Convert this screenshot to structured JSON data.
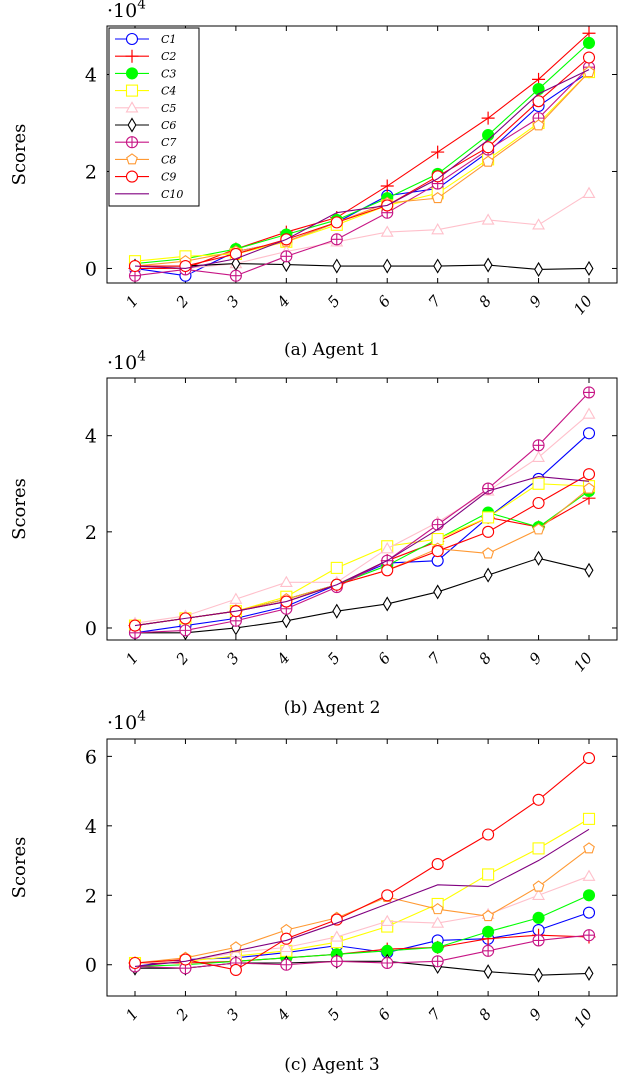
{
  "chart_data": [
    {
      "type": "line",
      "caption": "(a) Agent 1",
      "ylabel": "Scores",
      "multiplier": "·10^4",
      "x": [
        "1",
        "2",
        "3",
        "4",
        "5",
        "6",
        "7",
        "8",
        "9",
        "10"
      ],
      "ylim": [
        -0.3,
        5.0
      ],
      "yticks": [
        0,
        2,
        4
      ],
      "legend": "top-left",
      "series": [
        {
          "name": "C1",
          "color": "#0000ff",
          "marker": "circle-open",
          "values": [
            0.0,
            -0.15,
            0.35,
            0.55,
            0.95,
            1.5,
            1.65,
            2.4,
            3.35,
            4.05
          ]
        },
        {
          "name": "C2",
          "color": "#ff0000",
          "marker": "plus",
          "values": [
            0.0,
            0.0,
            0.4,
            0.75,
            1.05,
            1.7,
            2.4,
            3.1,
            3.9,
            4.85
          ]
        },
        {
          "name": "C3",
          "color": "#00ff00",
          "marker": "circle-filled",
          "values": [
            0.1,
            0.2,
            0.4,
            0.7,
            1.0,
            1.45,
            1.95,
            2.75,
            3.7,
            4.65
          ]
        },
        {
          "name": "C4",
          "color": "#ffff00",
          "marker": "square-open",
          "values": [
            0.15,
            0.25,
            0.3,
            0.55,
            0.9,
            1.3,
            1.55,
            2.25,
            3.0,
            4.05
          ]
        },
        {
          "name": "C5",
          "color": "#ffc0cb",
          "marker": "triangle-open",
          "values": [
            0.05,
            0.0,
            0.1,
            0.35,
            0.55,
            0.75,
            0.8,
            1.0,
            0.9,
            1.55
          ]
        },
        {
          "name": "C6",
          "color": "#000000",
          "marker": "diamond-open",
          "values": [
            0.05,
            0.05,
            0.1,
            0.08,
            0.05,
            0.05,
            0.05,
            0.07,
            -0.02,
            0.0
          ]
        },
        {
          "name": "C7",
          "color": "#c71585",
          "marker": "circle-plus",
          "values": [
            -0.15,
            -0.02,
            -0.15,
            0.25,
            0.6,
            1.15,
            1.75,
            2.45,
            3.1,
            4.15
          ]
        },
        {
          "name": "C8",
          "color": "#ff9933",
          "marker": "pentagon-open",
          "values": [
            0.05,
            0.15,
            0.35,
            0.55,
            0.95,
            1.35,
            1.45,
            2.2,
            2.95,
            4.05
          ]
        },
        {
          "name": "C9",
          "color": "#ff0000",
          "marker": "circle-open",
          "values": [
            0.05,
            0.05,
            0.3,
            0.6,
            0.95,
            1.3,
            1.9,
            2.5,
            3.45,
            4.35
          ]
        },
        {
          "name": "C10",
          "color": "#800080",
          "marker": "none",
          "values": [
            0.05,
            0.0,
            0.2,
            0.6,
            1.15,
            1.3,
            1.85,
            2.65,
            3.6,
            4.1
          ]
        }
      ]
    },
    {
      "type": "line",
      "caption": "(b) Agent 2",
      "ylabel": "Scores",
      "multiplier": "·10^4",
      "x": [
        "1",
        "2",
        "3",
        "4",
        "5",
        "6",
        "7",
        "8",
        "9",
        "10"
      ],
      "ylim": [
        -0.25,
        5.2
      ],
      "yticks": [
        0,
        2,
        4
      ],
      "legend": "none",
      "series": [
        {
          "name": "C1",
          "color": "#0000ff",
          "marker": "circle-open",
          "values": [
            -0.1,
            0.05,
            0.2,
            0.45,
            0.9,
            1.35,
            1.4,
            2.3,
            3.1,
            4.05
          ]
        },
        {
          "name": "C2",
          "color": "#ff0000",
          "marker": "plus",
          "values": [
            0.05,
            0.2,
            0.35,
            0.6,
            0.9,
            1.4,
            1.8,
            2.3,
            2.1,
            2.7
          ]
        },
        {
          "name": "C3",
          "color": "#00ff00",
          "marker": "circle-filled",
          "values": [
            0.05,
            0.2,
            0.35,
            0.6,
            0.9,
            1.3,
            1.85,
            2.4,
            2.1,
            2.85
          ]
        },
        {
          "name": "C4",
          "color": "#ffff00",
          "marker": "square-open",
          "values": [
            0.05,
            0.2,
            0.35,
            0.65,
            1.25,
            1.7,
            1.85,
            2.3,
            3.0,
            2.95
          ]
        },
        {
          "name": "C5",
          "color": "#ffc0cb",
          "marker": "triangle-open",
          "values": [
            0.1,
            0.25,
            0.6,
            0.95,
            0.95,
            1.65,
            2.2,
            2.85,
            3.55,
            4.45
          ]
        },
        {
          "name": "C6",
          "color": "#000000",
          "marker": "diamond-open",
          "values": [
            -0.1,
            -0.1,
            0.0,
            0.15,
            0.35,
            0.5,
            0.75,
            1.1,
            1.45,
            1.2
          ]
        },
        {
          "name": "C7",
          "color": "#c71585",
          "marker": "circle-plus",
          "values": [
            -0.1,
            -0.05,
            0.15,
            0.4,
            0.85,
            1.4,
            2.15,
            2.9,
            3.8,
            4.9
          ]
        },
        {
          "name": "C8",
          "color": "#ff9933",
          "marker": "pentagon-open",
          "values": [
            0.05,
            0.2,
            0.35,
            0.6,
            0.9,
            1.2,
            1.65,
            1.55,
            2.05,
            2.9
          ]
        },
        {
          "name": "C9",
          "color": "#ff0000",
          "marker": "circle-open",
          "values": [
            0.05,
            0.2,
            0.35,
            0.55,
            0.9,
            1.2,
            1.6,
            2.0,
            2.6,
            3.2
          ]
        },
        {
          "name": "C10",
          "color": "#800080",
          "marker": "none",
          "values": [
            0.05,
            0.2,
            0.35,
            0.55,
            0.9,
            1.4,
            2.05,
            2.85,
            3.15,
            3.05
          ]
        }
      ]
    },
    {
      "type": "line",
      "caption": "(c) Agent 3",
      "ylabel": "Scores",
      "multiplier": "·10^4",
      "x": [
        "1",
        "2",
        "3",
        "4",
        "5",
        "6",
        "7",
        "8",
        "9",
        "10"
      ],
      "ylim": [
        -0.9,
        6.5
      ],
      "yticks": [
        0,
        2,
        4,
        6
      ],
      "legend": "none",
      "series": [
        {
          "name": "C1",
          "color": "#0000ff",
          "marker": "circle-open",
          "values": [
            -0.05,
            0.15,
            0.2,
            0.35,
            0.55,
            0.35,
            0.7,
            0.75,
            1.0,
            1.5
          ]
        },
        {
          "name": "C2",
          "color": "#ff0000",
          "marker": "plus",
          "values": [
            0.05,
            0.05,
            0.1,
            0.2,
            0.3,
            0.45,
            0.5,
            0.75,
            0.85,
            0.8
          ]
        },
        {
          "name": "C3",
          "color": "#00ff00",
          "marker": "circle-filled",
          "values": [
            -0.05,
            0.0,
            0.1,
            0.2,
            0.3,
            0.4,
            0.5,
            0.95,
            1.35,
            2.0
          ]
        },
        {
          "name": "C4",
          "color": "#ffff00",
          "marker": "square-open",
          "values": [
            0.05,
            0.1,
            0.25,
            0.4,
            0.65,
            1.1,
            1.75,
            2.6,
            3.35,
            4.2
          ]
        },
        {
          "name": "C5",
          "color": "#ffc0cb",
          "marker": "triangle-open",
          "values": [
            0.05,
            0.1,
            0.35,
            0.5,
            0.8,
            1.25,
            1.2,
            1.45,
            2.0,
            2.55
          ]
        },
        {
          "name": "C6",
          "color": "#000000",
          "marker": "diamond-open",
          "values": [
            -0.1,
            -0.1,
            0.05,
            0.05,
            0.1,
            0.1,
            -0.05,
            -0.2,
            -0.3,
            -0.25
          ]
        },
        {
          "name": "C7",
          "color": "#c71585",
          "marker": "circle-plus",
          "values": [
            -0.05,
            -0.1,
            0.05,
            0.0,
            0.1,
            0.05,
            0.1,
            0.4,
            0.7,
            0.85
          ]
        },
        {
          "name": "C8",
          "color": "#ff9933",
          "marker": "pentagon-open",
          "values": [
            0.05,
            0.2,
            0.5,
            1.0,
            1.35,
            1.95,
            1.6,
            1.4,
            2.25,
            3.35
          ]
        },
        {
          "name": "C9",
          "color": "#ff0000",
          "marker": "circle-open",
          "values": [
            0.05,
            0.15,
            -0.15,
            0.75,
            1.3,
            2.0,
            2.9,
            3.75,
            4.75,
            5.95
          ]
        },
        {
          "name": "C10",
          "color": "#800080",
          "marker": "none",
          "values": [
            -0.05,
            0.1,
            0.4,
            0.7,
            1.2,
            1.75,
            2.3,
            2.25,
            3.0,
            3.9
          ]
        }
      ]
    }
  ]
}
